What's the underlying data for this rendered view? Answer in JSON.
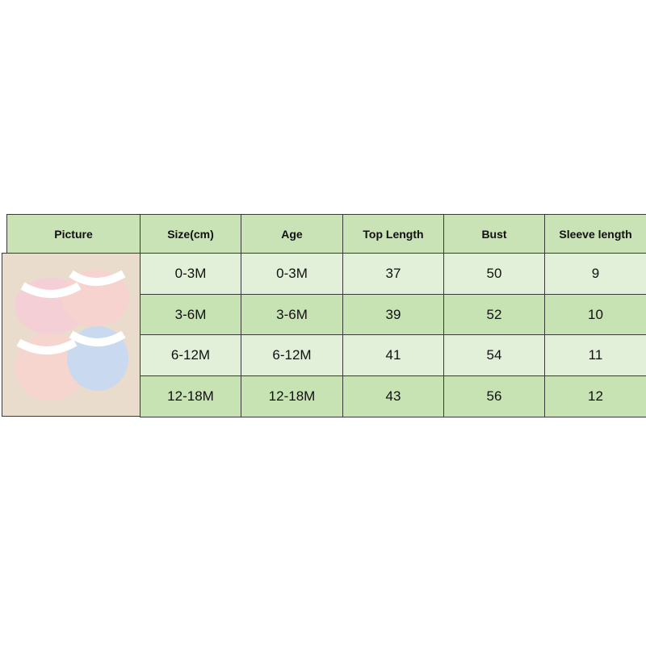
{
  "headers": [
    "Picture",
    "Size(cm)",
    "Age",
    "Top Length",
    "Bust",
    "Sleeve length"
  ],
  "rows": [
    [
      "0-3M",
      "0-3M",
      "37",
      "50",
      "9"
    ],
    [
      "3-6M",
      "3-6M",
      "39",
      "52",
      "10"
    ],
    [
      "6-12M",
      "6-12M",
      "41",
      "54",
      "11"
    ],
    [
      "12-18M",
      "12-18M",
      "43",
      "56",
      "12"
    ]
  ],
  "colors": {
    "header": "#c9e3b6",
    "row_light": "#e3f0d9",
    "row_dark": "#c7e3b3"
  }
}
